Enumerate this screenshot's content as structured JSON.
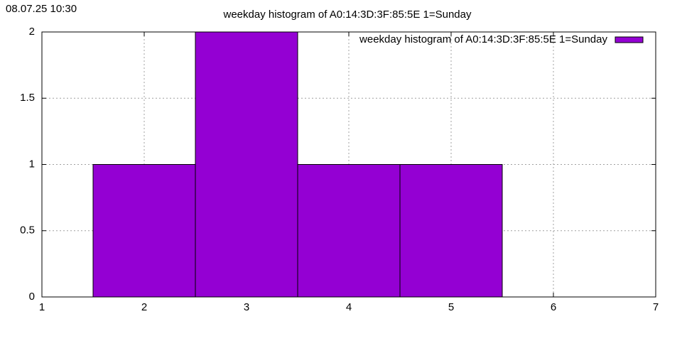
{
  "timestamp": "08.07.25 10:30",
  "chart_data": {
    "type": "histogram",
    "title": "weekday histogram of A0:14:3D:3F:85:5E 1=Sunday",
    "bins": [
      1.5,
      2.5,
      3.5,
      4.5,
      5.5
    ],
    "series": [
      {
        "name": "weekday histogram of A0:14:3D:3F:85:5E 1=Sunday",
        "color": "#9400d3",
        "values": [
          1,
          2,
          1,
          1
        ]
      }
    ],
    "xlim": [
      1,
      7
    ],
    "xticks": [
      1,
      2,
      3,
      4,
      5,
      6,
      7
    ],
    "ylim": [
      0,
      2
    ],
    "yticks": [
      0,
      0.5,
      1,
      1.5,
      2
    ],
    "grid": true,
    "legend": "top-right"
  }
}
